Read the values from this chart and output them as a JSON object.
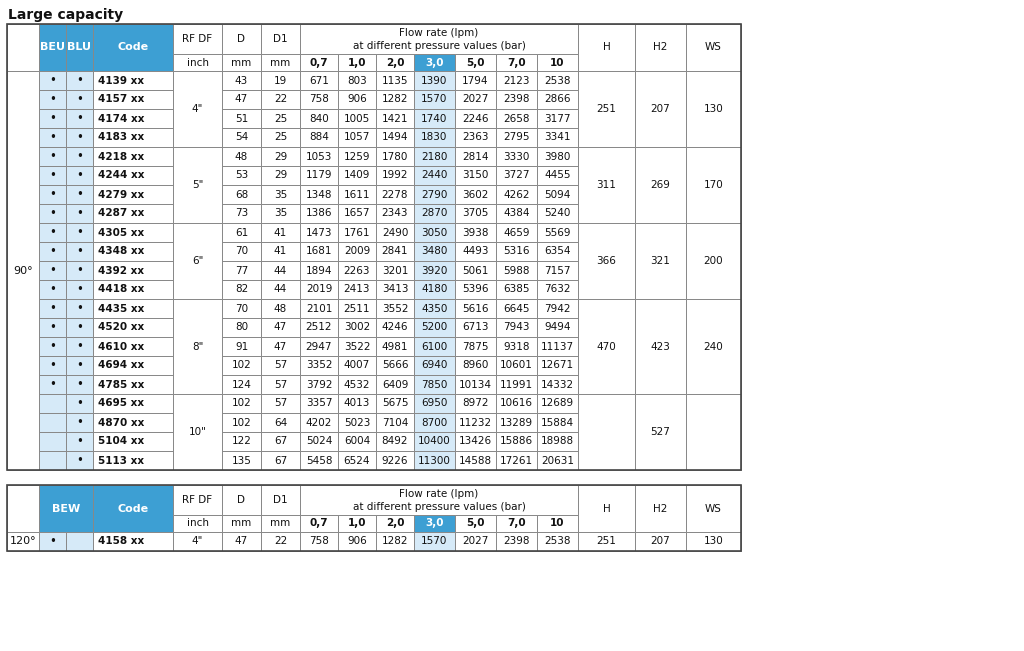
{
  "title": "Large capacity",
  "blue": "#3d9fd3",
  "light_blue": "#d6eaf8",
  "white": "#ffffff",
  "border": "#888888",
  "text": "#111111",
  "t1_rows": [
    [
      "•",
      "•",
      "4139 xx",
      "43",
      "19",
      "671",
      "803",
      "1135",
      "1390",
      "1794",
      "2123",
      "2538"
    ],
    [
      "•",
      "•",
      "4157 xx",
      "47",
      "22",
      "758",
      "906",
      "1282",
      "1570",
      "2027",
      "2398",
      "2866"
    ],
    [
      "•",
      "•",
      "4174 xx",
      "51",
      "25",
      "840",
      "1005",
      "1421",
      "1740",
      "2246",
      "2658",
      "3177"
    ],
    [
      "•",
      "•",
      "4183 xx",
      "54",
      "25",
      "884",
      "1057",
      "1494",
      "1830",
      "2363",
      "2795",
      "3341"
    ],
    [
      "•",
      "•",
      "4218 xx",
      "48",
      "29",
      "1053",
      "1259",
      "1780",
      "2180",
      "2814",
      "3330",
      "3980"
    ],
    [
      "•",
      "•",
      "4244 xx",
      "53",
      "29",
      "1179",
      "1409",
      "1992",
      "2440",
      "3150",
      "3727",
      "4455"
    ],
    [
      "•",
      "•",
      "4279 xx",
      "68",
      "35",
      "1348",
      "1611",
      "2278",
      "2790",
      "3602",
      "4262",
      "5094"
    ],
    [
      "•",
      "•",
      "4287 xx",
      "73",
      "35",
      "1386",
      "1657",
      "2343",
      "2870",
      "3705",
      "4384",
      "5240"
    ],
    [
      "•",
      "•",
      "4305 xx",
      "61",
      "41",
      "1473",
      "1761",
      "2490",
      "3050",
      "3938",
      "4659",
      "5569"
    ],
    [
      "•",
      "•",
      "4348 xx",
      "70",
      "41",
      "1681",
      "2009",
      "2841",
      "3480",
      "4493",
      "5316",
      "6354"
    ],
    [
      "•",
      "•",
      "4392 xx",
      "77",
      "44",
      "1894",
      "2263",
      "3201",
      "3920",
      "5061",
      "5988",
      "7157"
    ],
    [
      "•",
      "•",
      "4418 xx",
      "82",
      "44",
      "2019",
      "2413",
      "3413",
      "4180",
      "5396",
      "6385",
      "7632"
    ],
    [
      "•",
      "•",
      "4435 xx",
      "70",
      "48",
      "2101",
      "2511",
      "3552",
      "4350",
      "5616",
      "6645",
      "7942"
    ],
    [
      "•",
      "•",
      "4520 xx",
      "80",
      "47",
      "2512",
      "3002",
      "4246",
      "5200",
      "6713",
      "7943",
      "9494"
    ],
    [
      "•",
      "•",
      "4610 xx",
      "91",
      "47",
      "2947",
      "3522",
      "4981",
      "6100",
      "7875",
      "9318",
      "11137"
    ],
    [
      "•",
      "•",
      "4694 xx",
      "102",
      "57",
      "3352",
      "4007",
      "5666",
      "6940",
      "8960",
      "10601",
      "12671"
    ],
    [
      "•",
      "•",
      "4785 xx",
      "124",
      "57",
      "3792",
      "4532",
      "6409",
      "7850",
      "10134",
      "11991",
      "14332"
    ],
    [
      "",
      "•",
      "4695 xx",
      "102",
      "57",
      "3357",
      "4013",
      "5675",
      "6950",
      "8972",
      "10616",
      "12689"
    ],
    [
      "",
      "•",
      "4870 xx",
      "102",
      "64",
      "4202",
      "5023",
      "7104",
      "8700",
      "11232",
      "13289",
      "15884"
    ],
    [
      "",
      "•",
      "5104 xx",
      "122",
      "67",
      "5024",
      "6004",
      "8492",
      "10400",
      "13426",
      "15886",
      "18988"
    ],
    [
      "",
      "•",
      "5113 xx",
      "135",
      "67",
      "5458",
      "6524",
      "9226",
      "11300",
      "14588",
      "17261",
      "20631"
    ]
  ],
  "t1_groups": [
    {
      "rf": "4\"",
      "r0": 0,
      "r1": 3,
      "H": "251",
      "H2": "207",
      "WS": "130"
    },
    {
      "rf": "5\"",
      "r0": 4,
      "r1": 7,
      "H": "311",
      "H2": "269",
      "WS": "170"
    },
    {
      "rf": "6\"",
      "r0": 8,
      "r1": 11,
      "H": "366",
      "H2": "321",
      "WS": "200"
    },
    {
      "rf": "8\"",
      "r0": 12,
      "r1": 16,
      "H": "470",
      "H2": "423",
      "WS": "240"
    },
    {
      "rf": "10\"",
      "r0": 17,
      "r1": 20,
      "H": "",
      "H2": "527",
      "WS": ""
    }
  ],
  "t2_rows": [
    [
      "•",
      "",
      "4158 xx",
      "47",
      "22",
      "758",
      "906",
      "1282",
      "1570",
      "2027",
      "2398",
      "2538"
    ]
  ],
  "t2_groups": [
    {
      "rf": "4\"",
      "r0": 0,
      "r1": 0,
      "H": "251",
      "H2": "207",
      "WS": "130"
    }
  ]
}
